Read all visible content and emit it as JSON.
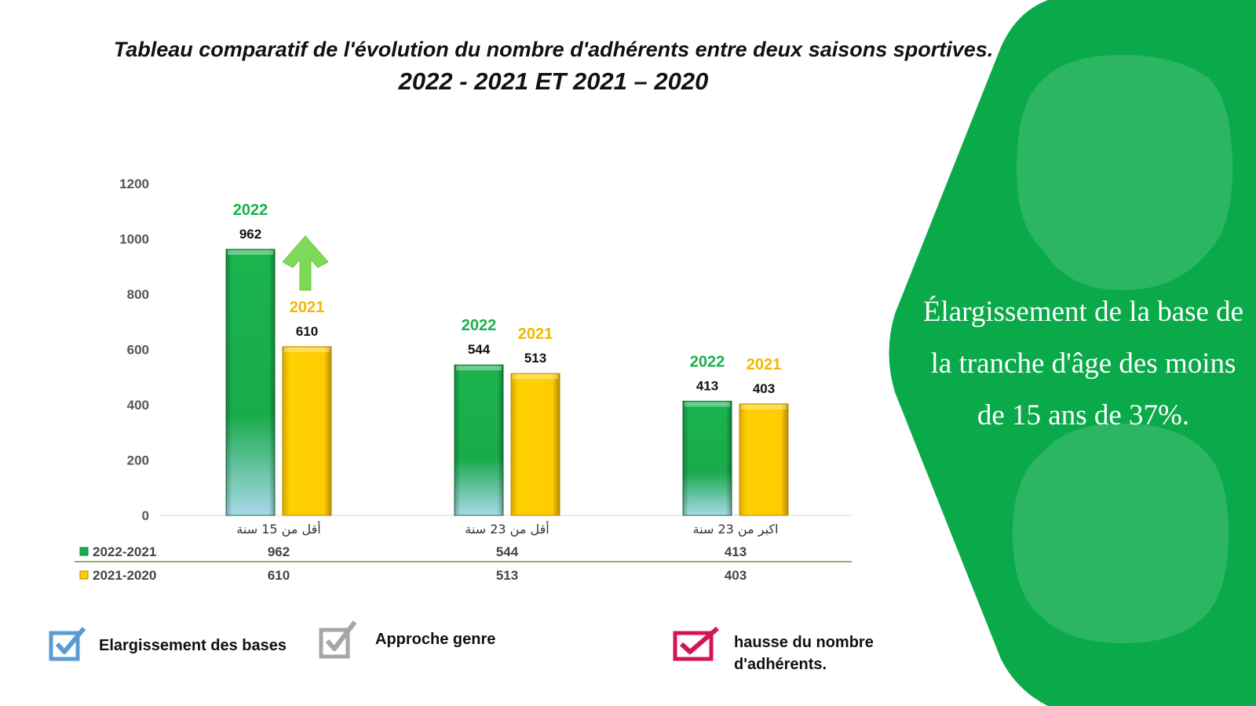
{
  "title": {
    "line1": "Tableau comparatif de l'évolution du nombre d'adhérents entre deux saisons sportives.",
    "line2": "2022 - 2021 ET 2021 – 2020"
  },
  "side_panel": {
    "text": "Élargissement de la base de la tranche d'âge des moins de 15 ans de 37%.",
    "color": "#0aaa4a"
  },
  "chart_data": {
    "type": "bar",
    "categories": [
      "أقل من 15 سنة",
      "أقل من 23 سنة",
      "اكبر من 23 سنة"
    ],
    "series": [
      {
        "name": "2022-2021",
        "values": [
          962,
          544,
          413
        ],
        "label_year": "2022",
        "color": "#19b04b"
      },
      {
        "name": "2021-2020",
        "values": [
          610,
          513,
          403
        ],
        "label_year": "2021",
        "color": "#ffcc00"
      }
    ],
    "ylim": [
      0,
      1200
    ],
    "yticks": [
      0,
      200,
      400,
      600,
      800,
      1000,
      1200
    ],
    "data_table": true,
    "annotation": "up-arrow-icon"
  },
  "legend": [
    {
      "label": "Elargissement des bases",
      "icon": "checkbox-check-icon",
      "color": "#5b9bd5"
    },
    {
      "label": "Approche genre",
      "icon": "checkbox-check-icon",
      "color": "#a6a6a6"
    },
    {
      "label": "hausse du nombre d'adhérents.",
      "icon": "checkbox-check-icon",
      "color": "#d4145a"
    }
  ]
}
